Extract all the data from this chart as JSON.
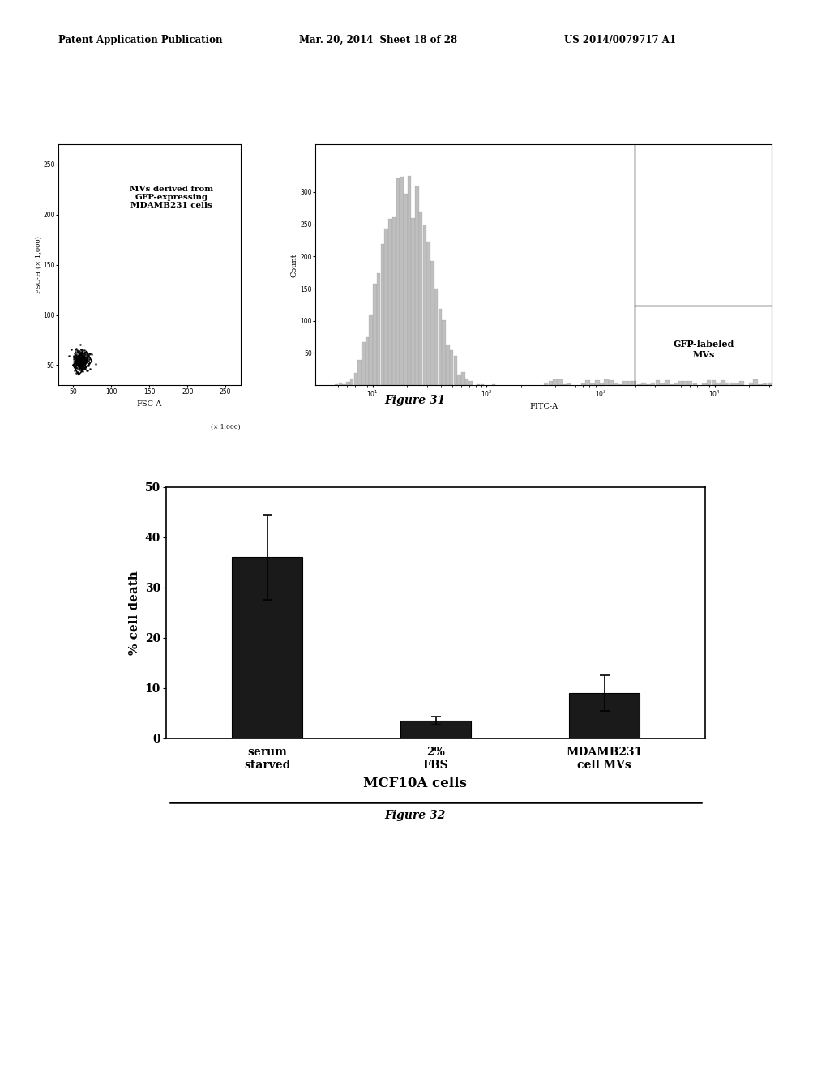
{
  "bg_color": "#ffffff",
  "page_header_left": "Patent Application Publication",
  "page_header_center": "Mar. 20, 2014  Sheet 18 of 28",
  "page_header_right": "US 2014/0079717 A1",
  "fig31_caption": "Figure 31",
  "fig32_caption": "Figure 32",
  "fig31_annotation": "MVs derived from\nGFP-expressing\nMDAMB231 cells",
  "fig31_scatter_xlabel": "FSC-A",
  "fig31_scatter_ylabel": "FSC-H (× 1,000)",
  "fig31_scatter_xlabel_scale": "(× 1,000)",
  "fig31_hist_xlabel": "FITC-A",
  "fig31_hist_ylabel": "Count",
  "fig31_hist_annotation": "GFP-labeled\nMVs",
  "bar_categories": [
    "serum\nstarved",
    "2%\nFBS",
    "MDAMB231\ncell MVs"
  ],
  "bar_values": [
    36.0,
    3.5,
    9.0
  ],
  "bar_errors": [
    8.5,
    0.8,
    3.5
  ],
  "bar_color": "#1a1a1a",
  "bar_ylabel": "% cell death",
  "bar_ylim": [
    0,
    50
  ],
  "bar_yticks": [
    0,
    10,
    20,
    30,
    40,
    50
  ],
  "bar_xlabel_group": "MCF10A cells",
  "error_color": "#000000"
}
